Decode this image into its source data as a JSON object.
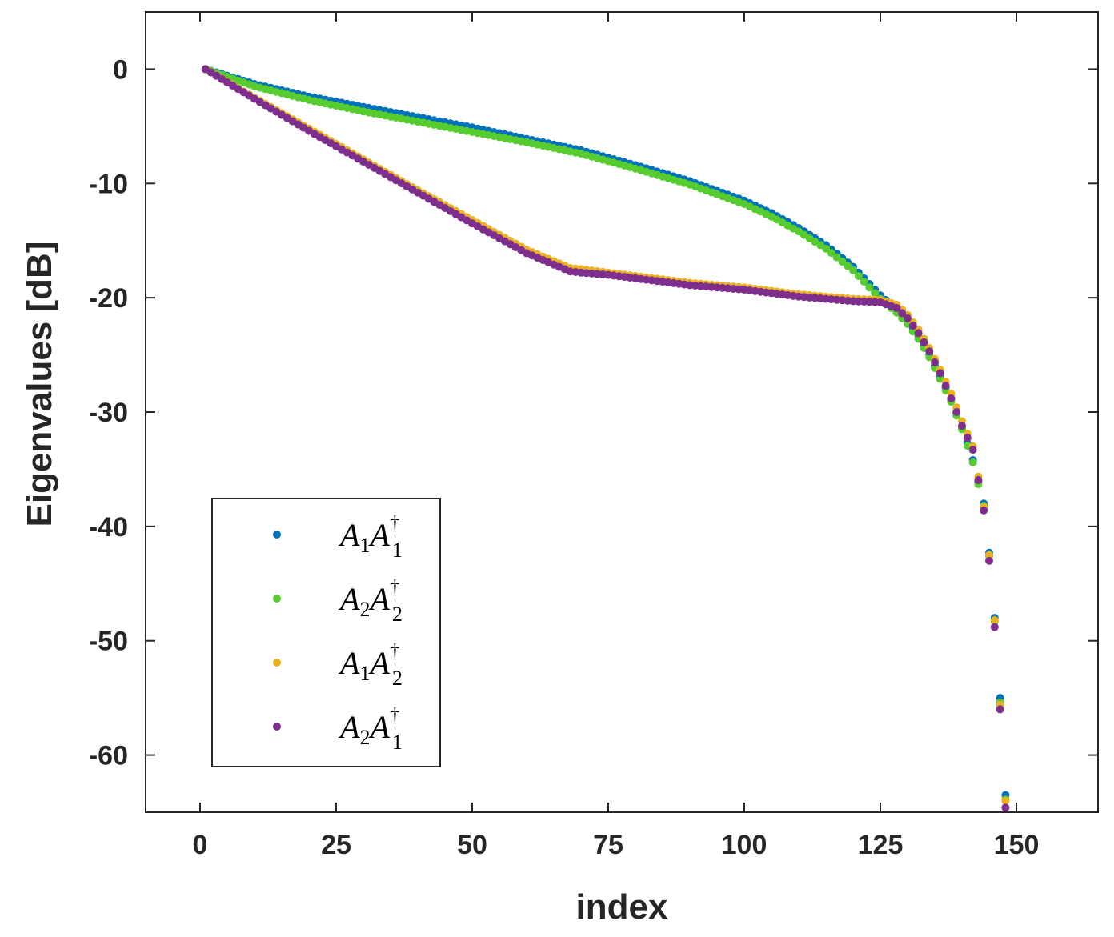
{
  "chart_data": {
    "type": "scatter",
    "title": "",
    "xlabel": "index",
    "ylabel": "Eigenvalues [dB]",
    "xlim": [
      -10,
      165
    ],
    "ylim": [
      -65,
      5
    ],
    "xticks": [
      0,
      25,
      50,
      75,
      100,
      125,
      150
    ],
    "yticks": [
      0,
      -10,
      -20,
      -30,
      -40,
      -50,
      -60
    ],
    "xtick_labels": [
      "0",
      "25",
      "50",
      "75",
      "100",
      "125",
      "150"
    ],
    "ytick_labels": [
      "0",
      "-10",
      "-20",
      "-30",
      "-40",
      "-50",
      "-60"
    ],
    "grid": false,
    "legend_position": "bottom-left",
    "series": [
      {
        "name": "A1A1†",
        "legend": {
          "base1": "A",
          "sub1": "1",
          "base2": "A",
          "sub2": "1",
          "sup": "†"
        },
        "color": "#0072BD",
        "x": [
          1,
          10,
          20,
          30,
          40,
          50,
          60,
          70,
          80,
          90,
          100,
          105,
          110,
          115,
          120,
          125,
          128,
          130,
          132,
          134,
          136,
          138,
          140,
          142,
          144,
          145,
          146,
          147,
          148
        ],
        "y": [
          0,
          -1.3,
          -2.4,
          -3.3,
          -4.2,
          -5.1,
          -6.1,
          -7.1,
          -8.4,
          -9.8,
          -11.5,
          -12.6,
          -13.9,
          -15.4,
          -17.3,
          -19.8,
          -21.0,
          -22.0,
          -23.4,
          -25.0,
          -26.9,
          -28.9,
          -31.3,
          -34.2,
          -38.0,
          -42.3,
          -48.0,
          -55.0,
          -63.5
        ]
      },
      {
        "name": "A2A2†",
        "legend": {
          "base1": "A",
          "sub1": "2",
          "base2": "A",
          "sub2": "2",
          "sup": "†"
        },
        "color": "#56CC2E",
        "x": [
          1,
          10,
          20,
          30,
          40,
          50,
          60,
          70,
          80,
          90,
          100,
          105,
          110,
          115,
          120,
          125,
          128,
          130,
          132,
          134,
          136,
          138,
          140,
          142,
          144,
          145,
          146,
          147,
          148
        ],
        "y": [
          0,
          -1.5,
          -2.7,
          -3.7,
          -4.6,
          -5.5,
          -6.4,
          -7.4,
          -8.7,
          -10.1,
          -11.8,
          -12.9,
          -14.2,
          -15.7,
          -17.6,
          -20.1,
          -21.3,
          -22.3,
          -23.6,
          -25.2,
          -27.1,
          -29.1,
          -31.5,
          -34.4,
          -38.2,
          -42.6,
          -48.3,
          -55.4,
          -63.9
        ]
      },
      {
        "name": "A1A2†",
        "legend": {
          "base1": "A",
          "sub1": "1",
          "base2": "A",
          "sub2": "2",
          "sup": "†"
        },
        "color": "#EDB120",
        "x": [
          1,
          10,
          20,
          30,
          40,
          50,
          60,
          68,
          70,
          75,
          80,
          85,
          90,
          95,
          100,
          105,
          110,
          115,
          120,
          125,
          128,
          130,
          132,
          134,
          136,
          138,
          140,
          142,
          144,
          145,
          146,
          147,
          148
        ],
        "y": [
          0,
          -2.5,
          -5.2,
          -7.9,
          -10.6,
          -13.2,
          -15.8,
          -17.4,
          -17.5,
          -17.8,
          -18.1,
          -18.4,
          -18.7,
          -18.9,
          -19.1,
          -19.4,
          -19.7,
          -19.9,
          -20.1,
          -20.2,
          -20.6,
          -21.5,
          -22.8,
          -24.4,
          -26.3,
          -28.4,
          -30.8,
          -33.0,
          -38.3,
          -42.5,
          -48.2,
          -55.6,
          -64.0
        ]
      },
      {
        "name": "A2A1†",
        "legend": {
          "base1": "A",
          "sub1": "2",
          "base2": "A",
          "sub2": "1",
          "sup": "†"
        },
        "color": "#7E2F8E",
        "x": [
          1,
          10,
          20,
          30,
          40,
          50,
          60,
          68,
          70,
          75,
          80,
          85,
          90,
          95,
          100,
          105,
          110,
          115,
          120,
          125,
          128,
          130,
          132,
          134,
          136,
          138,
          140,
          142,
          144,
          145,
          146,
          147,
          148
        ],
        "y": [
          0,
          -2.6,
          -5.4,
          -8.1,
          -10.8,
          -13.5,
          -16.1,
          -17.7,
          -17.8,
          -18.0,
          -18.3,
          -18.6,
          -18.9,
          -19.1,
          -19.3,
          -19.6,
          -19.9,
          -20.1,
          -20.3,
          -20.4,
          -20.9,
          -21.8,
          -23.1,
          -24.7,
          -26.6,
          -28.8,
          -31.2,
          -33.3,
          -38.6,
          -43.0,
          -48.8,
          -56.0,
          -64.6
        ]
      }
    ]
  }
}
